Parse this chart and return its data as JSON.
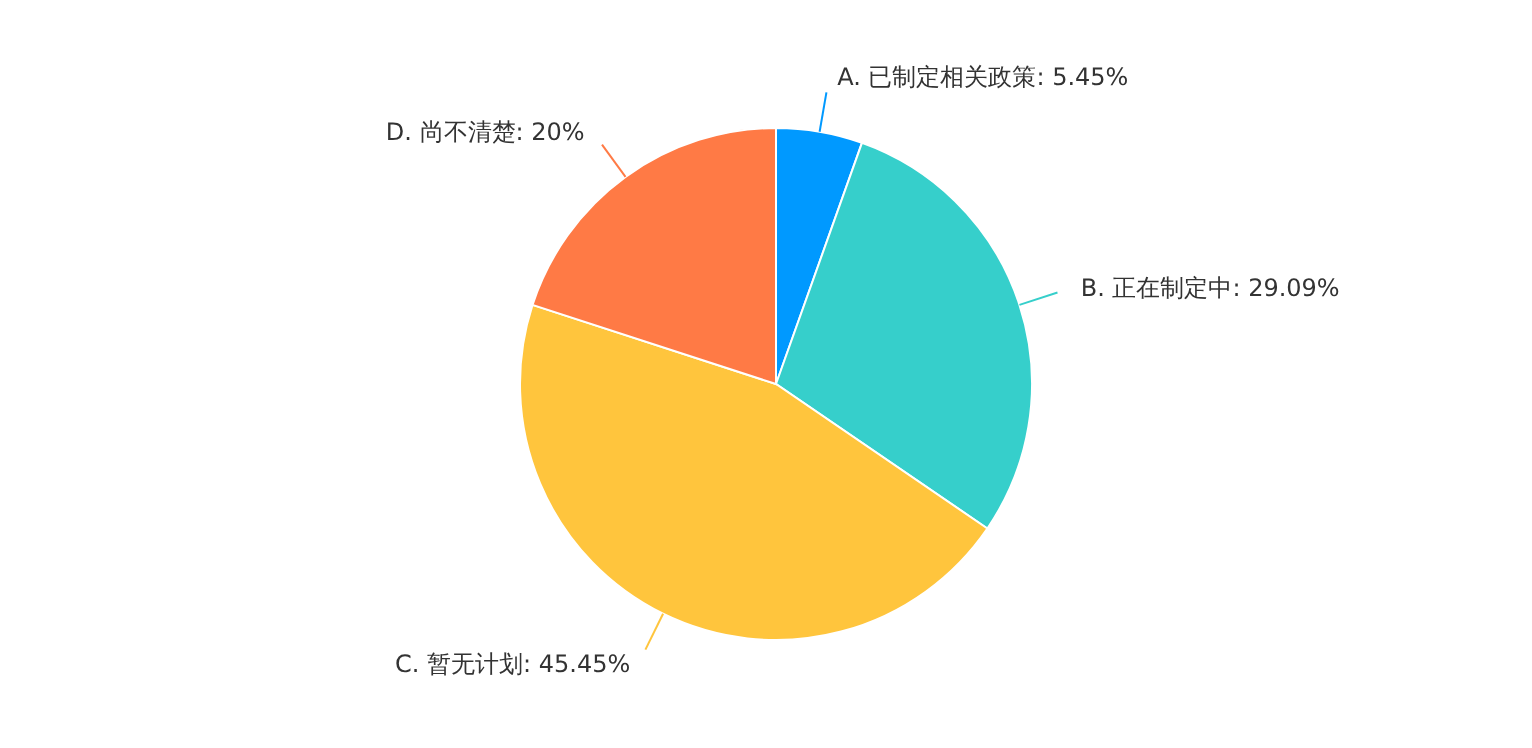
{
  "chart_data": {
    "type": "pie",
    "categories": [
      "A. 已制定相关政策",
      "B. 正在制定中",
      "C. 暂无计划",
      "D. 尚不清楚"
    ],
    "values": [
      5.45,
      29.09,
      45.45,
      20
    ],
    "value_labels": [
      "5.45%",
      "29.09%",
      "45.45%",
      "20%"
    ],
    "colors": [
      "#0099ff",
      "#36cfcb",
      "#ffc53d",
      "#ff7a45"
    ],
    "legend": false
  }
}
